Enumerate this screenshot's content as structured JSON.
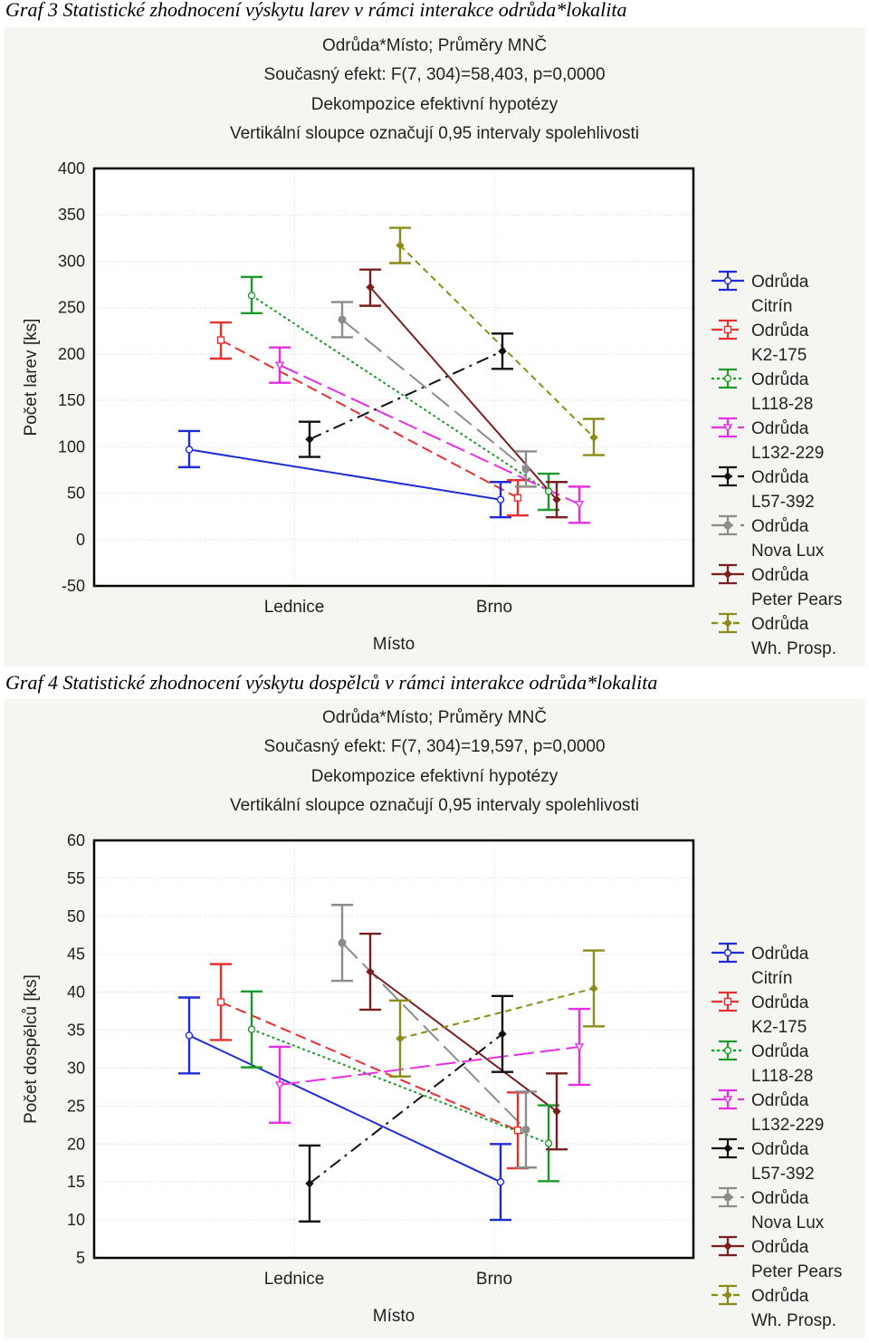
{
  "figures": [
    {
      "caption": "Graf 3 Statistické zhodnocení výskytu larev v rámci interakce odrůda*lokalita",
      "title_lines": [
        "Odrůda*Místo; Průměry MNČ",
        "Současný efekt: F(7, 304)=58,403, p=0,0000",
        "Dekompozice efektivní hypotézy",
        "Vertikální sloupce označují 0,95 intervaly spolehlivosti"
      ]
    },
    {
      "caption": "Graf 4 Statistické zhodnocení výskytu dospělců v rámci interakce odrůda*lokalita",
      "title_lines": [
        "Odrůda*Místo; Průměry MNČ",
        "Současný efekt: F(7, 304)=19,597, p=0,0000",
        "Dekompozice efektivní hypotézy",
        "Vertikální sloupce označují 0,95 intervaly spolehlivosti"
      ]
    }
  ],
  "chart_data": [
    {
      "type": "line",
      "title": "Odrůda*Místo; Průměry MNČ",
      "xlabel": "Místo",
      "ylabel": "Počet larev [ks]",
      "categories": [
        "Lednice",
        "Brno"
      ],
      "ylim": [
        -50,
        400
      ],
      "yticks": [
        "400",
        "350",
        "300",
        "250",
        "200",
        "150",
        "100",
        "50",
        "0",
        "-50"
      ],
      "legend_position": "right",
      "series": [
        {
          "name": "Citrín",
          "legend_line1": "Odrůda",
          "legend_line2": "Citrín",
          "color": "#1f2bd6",
          "values": [
            97,
            43
          ],
          "ci": [
            [
              78,
              117
            ],
            [
              24,
              62
            ]
          ]
        },
        {
          "name": "K2-175",
          "legend_line1": "Odrůda",
          "legend_line2": "K2-175",
          "color": "#e83030",
          "values": [
            215,
            45
          ],
          "ci": [
            [
              195,
              234
            ],
            [
              26,
              64
            ]
          ]
        },
        {
          "name": "L118-28",
          "legend_line1": "Odrůda",
          "legend_line2": "L118-28",
          "color": "#1e9a2a",
          "values": [
            263,
            52
          ],
          "ci": [
            [
              244,
              283
            ],
            [
              32,
              71
            ]
          ]
        },
        {
          "name": "L132-229",
          "legend_line1": "Odrůda",
          "legend_line2": "L132-229",
          "color": "#e62ee6",
          "values": [
            188,
            38
          ],
          "ci": [
            [
              169,
              207
            ],
            [
              18,
              57
            ]
          ]
        },
        {
          "name": "L57-392",
          "legend_line1": "Odrůda",
          "legend_line2": "L57-392",
          "color": "#111111",
          "values": [
            108,
            203
          ],
          "ci": [
            [
              89,
              127
            ],
            [
              184,
              222
            ]
          ]
        },
        {
          "name": "Nova Lux",
          "legend_line1": "Odrůda",
          "legend_line2": "Nova Lux",
          "color": "#8c8c8c",
          "values": [
            237,
            76
          ],
          "ci": [
            [
              218,
              256
            ],
            [
              57,
              95
            ]
          ]
        },
        {
          "name": "Peter Pears",
          "legend_line1": "Odrůda",
          "legend_line2": "Peter Pears",
          "color": "#7a1f1f",
          "values": [
            272,
            43
          ],
          "ci": [
            [
              252,
              291
            ],
            [
              24,
              62
            ]
          ]
        },
        {
          "name": "Wh. Prosp.",
          "legend_line1": "Odrůda",
          "legend_line2": "Wh. Prosp.",
          "color": "#8c8c1a",
          "values": [
            317,
            110
          ],
          "ci": [
            [
              298,
              336
            ],
            [
              91,
              130
            ]
          ]
        }
      ]
    },
    {
      "type": "line",
      "title": "Odrůda*Místo; Průměry MNČ",
      "xlabel": "Místo",
      "ylabel": "Počet dospělců [ks]",
      "categories": [
        "Lednice",
        "Brno"
      ],
      "ylim": [
        5,
        60
      ],
      "yticks": [
        "60",
        "55",
        "50",
        "45",
        "40",
        "35",
        "30",
        "25",
        "20",
        "15",
        "10",
        "5"
      ],
      "legend_position": "right",
      "series": [
        {
          "name": "Citrín",
          "legend_line1": "Odrůda",
          "legend_line2": "Citrín",
          "color": "#1f2bd6",
          "values": [
            34.3,
            15
          ],
          "ci": [
            [
              29.3,
              39.3
            ],
            [
              10,
              20
            ]
          ]
        },
        {
          "name": "K2-175",
          "legend_line1": "Odrůda",
          "legend_line2": "K2-175",
          "color": "#e83030",
          "values": [
            38.7,
            21.8
          ],
          "ci": [
            [
              33.7,
              43.7
            ],
            [
              16.8,
              26.8
            ]
          ]
        },
        {
          "name": "L118-28",
          "legend_line1": "Odrůda",
          "legend_line2": "L118-28",
          "color": "#1e9a2a",
          "values": [
            35.1,
            20.1
          ],
          "ci": [
            [
              30.1,
              40.1
            ],
            [
              15.1,
              25.1
            ]
          ]
        },
        {
          "name": "L132-229",
          "legend_line1": "Odrůda",
          "legend_line2": "L132-229",
          "color": "#e62ee6",
          "values": [
            27.8,
            32.8
          ],
          "ci": [
            [
              22.8,
              32.8
            ],
            [
              27.8,
              37.8
            ]
          ]
        },
        {
          "name": "L57-392",
          "legend_line1": "Odrůda",
          "legend_line2": "L57-392",
          "color": "#111111",
          "values": [
            14.8,
            34.5
          ],
          "ci": [
            [
              9.8,
              19.8
            ],
            [
              29.5,
              39.5
            ]
          ]
        },
        {
          "name": "Nova Lux",
          "legend_line1": "Odrůda",
          "legend_line2": "Nova Lux",
          "color": "#8c8c8c",
          "values": [
            46.5,
            21.9
          ],
          "ci": [
            [
              41.5,
              51.5
            ],
            [
              16.9,
              26.9
            ]
          ]
        },
        {
          "name": "Peter Pears",
          "legend_line1": "Odrůda",
          "legend_line2": "Peter Pears",
          "color": "#7a1f1f",
          "values": [
            42.7,
            24.3
          ],
          "ci": [
            [
              37.7,
              47.7
            ],
            [
              19.3,
              29.3
            ]
          ]
        },
        {
          "name": "Wh. Prosp.",
          "legend_line1": "Odrůda",
          "legend_line2": "Wh. Prosp.",
          "color": "#8c8c1a",
          "values": [
            33.9,
            40.5
          ],
          "ci": [
            [
              28.9,
              38.9
            ],
            [
              35.5,
              45.5
            ]
          ]
        }
      ]
    }
  ]
}
